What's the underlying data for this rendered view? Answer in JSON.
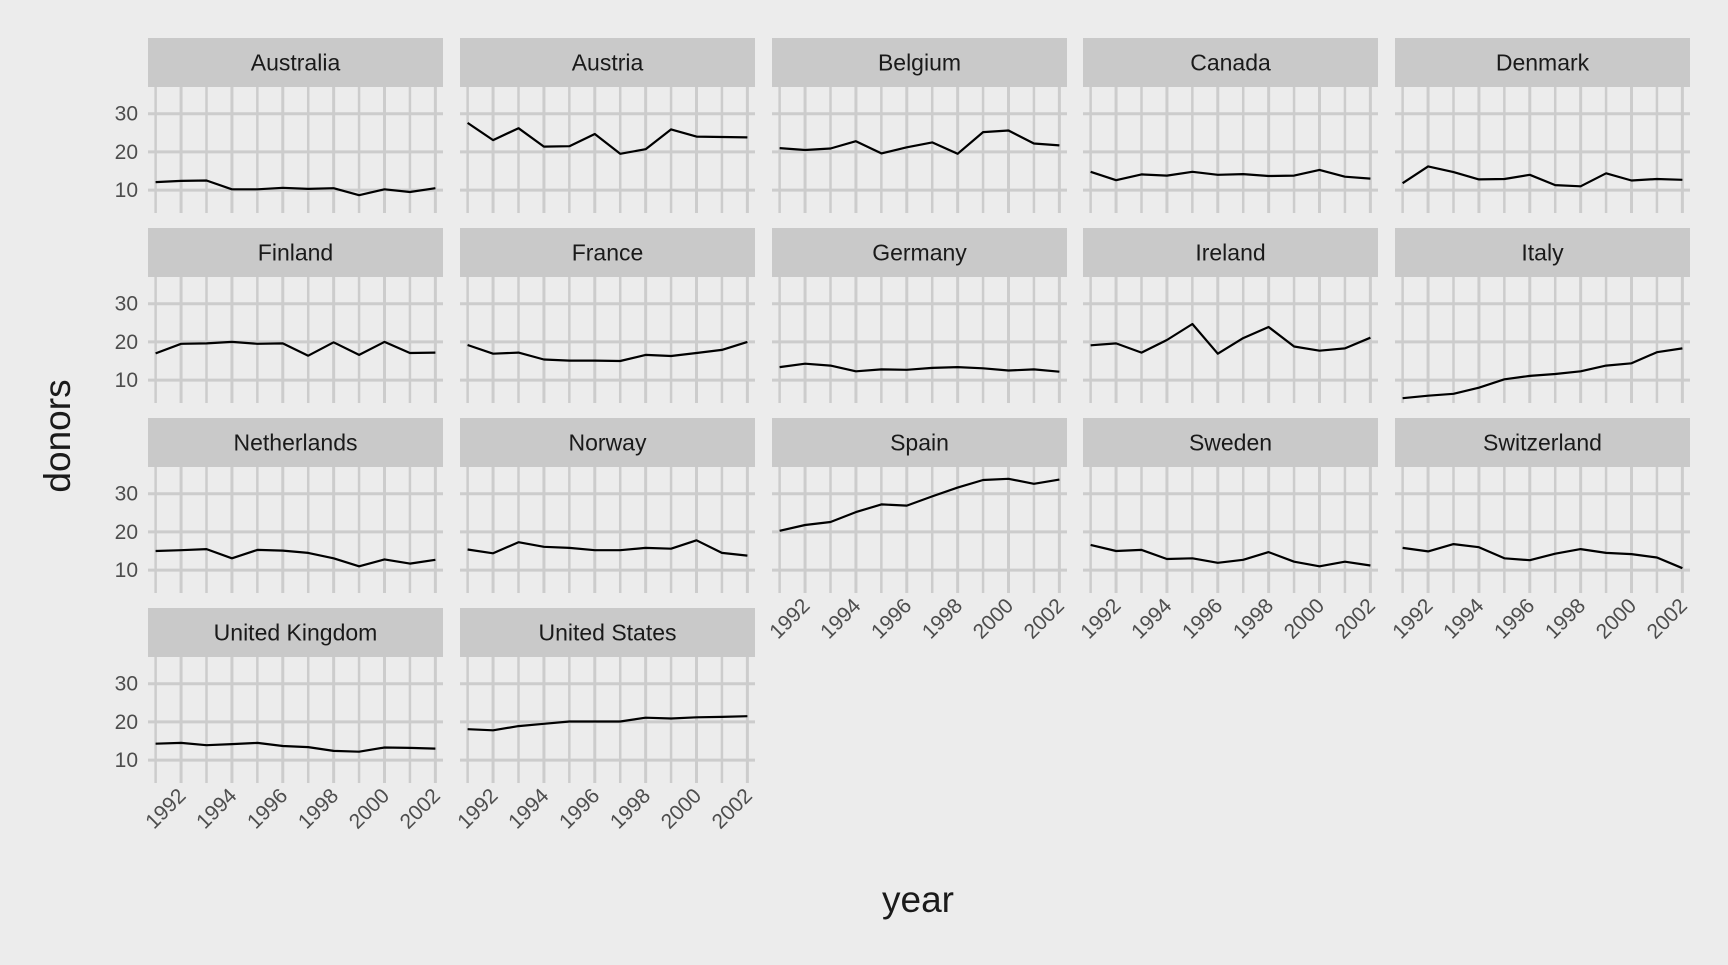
{
  "chart_data": {
    "type": "line",
    "title": "",
    "xlabel": "year",
    "ylabel": "donors",
    "x": [
      1991,
      1992,
      1993,
      1994,
      1995,
      1996,
      1997,
      1998,
      1999,
      2000,
      2001,
      2002
    ],
    "x_ticks": [
      "1992",
      "1994",
      "1996",
      "1998",
      "2000",
      "2002"
    ],
    "y_ticks": [
      "10",
      "20",
      "30"
    ],
    "xlim": [
      1990.7,
      2002.3
    ],
    "ylim": [
      4,
      37
    ],
    "grid": true,
    "line_color": "#000000",
    "panel_background": "#ececec",
    "strip_background": "#c9c9c9",
    "gridline_color": "#cccccc",
    "panels": [
      {
        "name": "Australia",
        "values": [
          12.1,
          12.4,
          12.5,
          10.2,
          10.2,
          10.6,
          10.3,
          10.5,
          8.67,
          10.2,
          9.5,
          10.5
        ]
      },
      {
        "name": "Austria",
        "values": [
          27.6,
          23.1,
          26.2,
          21.4,
          21.5,
          24.7,
          19.5,
          20.7,
          25.9,
          24.0,
          23.9,
          23.8
        ]
      },
      {
        "name": "Belgium",
        "values": [
          21.0,
          20.5,
          20.9,
          22.8,
          19.6,
          21.2,
          22.5,
          19.5,
          25.2,
          25.6,
          22.2,
          21.7
        ]
      },
      {
        "name": "Canada",
        "values": [
          14.8,
          12.6,
          14.1,
          13.8,
          14.8,
          14.0,
          14.2,
          13.7,
          13.8,
          15.3,
          13.5,
          13.0
        ]
      },
      {
        "name": "Denmark",
        "values": [
          11.8,
          16.2,
          14.7,
          12.8,
          12.9,
          14.0,
          11.3,
          11.0,
          14.4,
          12.5,
          12.9,
          12.7
        ]
      },
      {
        "name": "Finland",
        "values": [
          17.0,
          19.5,
          19.6,
          20.0,
          19.5,
          19.6,
          16.4,
          19.9,
          16.6,
          20.0,
          17.1,
          17.2
        ]
      },
      {
        "name": "France",
        "values": [
          19.2,
          16.9,
          17.2,
          15.4,
          15.1,
          15.1,
          15.0,
          16.6,
          16.3,
          17.1,
          17.9,
          20.0
        ]
      },
      {
        "name": "Germany",
        "values": [
          13.4,
          14.3,
          13.8,
          12.3,
          12.8,
          12.7,
          13.2,
          13.4,
          13.1,
          12.5,
          12.8,
          12.2
        ]
      },
      {
        "name": "Ireland",
        "values": [
          19.1,
          19.6,
          17.2,
          20.5,
          24.7,
          16.9,
          21.0,
          23.9,
          18.8,
          17.7,
          18.3,
          21.1
        ]
      },
      {
        "name": "Italy",
        "values": [
          5.25,
          5.9,
          6.4,
          8.0,
          10.2,
          11.1,
          11.6,
          12.3,
          13.8,
          14.4,
          17.3,
          18.3
        ]
      },
      {
        "name": "Netherlands",
        "values": [
          15.0,
          15.2,
          15.5,
          13.1,
          15.3,
          15.1,
          14.5,
          13.1,
          11.0,
          12.8,
          11.7,
          12.7
        ]
      },
      {
        "name": "Norway",
        "values": [
          15.4,
          14.4,
          17.3,
          16.1,
          15.8,
          15.2,
          15.2,
          15.8,
          15.6,
          17.8,
          14.5,
          13.8
        ]
      },
      {
        "name": "Spain",
        "values": [
          20.3,
          21.8,
          22.6,
          25.2,
          27.2,
          26.9,
          29.3,
          31.6,
          33.6,
          33.9,
          32.6,
          33.7
        ]
      },
      {
        "name": "Sweden",
        "values": [
          16.6,
          15.0,
          15.3,
          12.9,
          13.1,
          11.9,
          12.7,
          14.7,
          12.2,
          11.0,
          12.2,
          11.2
        ]
      },
      {
        "name": "Switzerland",
        "values": [
          15.8,
          14.9,
          16.8,
          16.0,
          13.1,
          12.6,
          14.3,
          15.5,
          14.5,
          14.2,
          13.3,
          10.5
        ]
      },
      {
        "name": "United Kingdom",
        "values": [
          14.3,
          14.5,
          13.9,
          14.2,
          14.5,
          13.7,
          13.4,
          12.4,
          12.2,
          13.3,
          13.2,
          13.0
        ]
      },
      {
        "name": "United States",
        "values": [
          18.1,
          17.8,
          18.9,
          19.5,
          20.1,
          20.1,
          20.1,
          21.1,
          20.9,
          21.2,
          21.3,
          21.5
        ]
      }
    ]
  }
}
